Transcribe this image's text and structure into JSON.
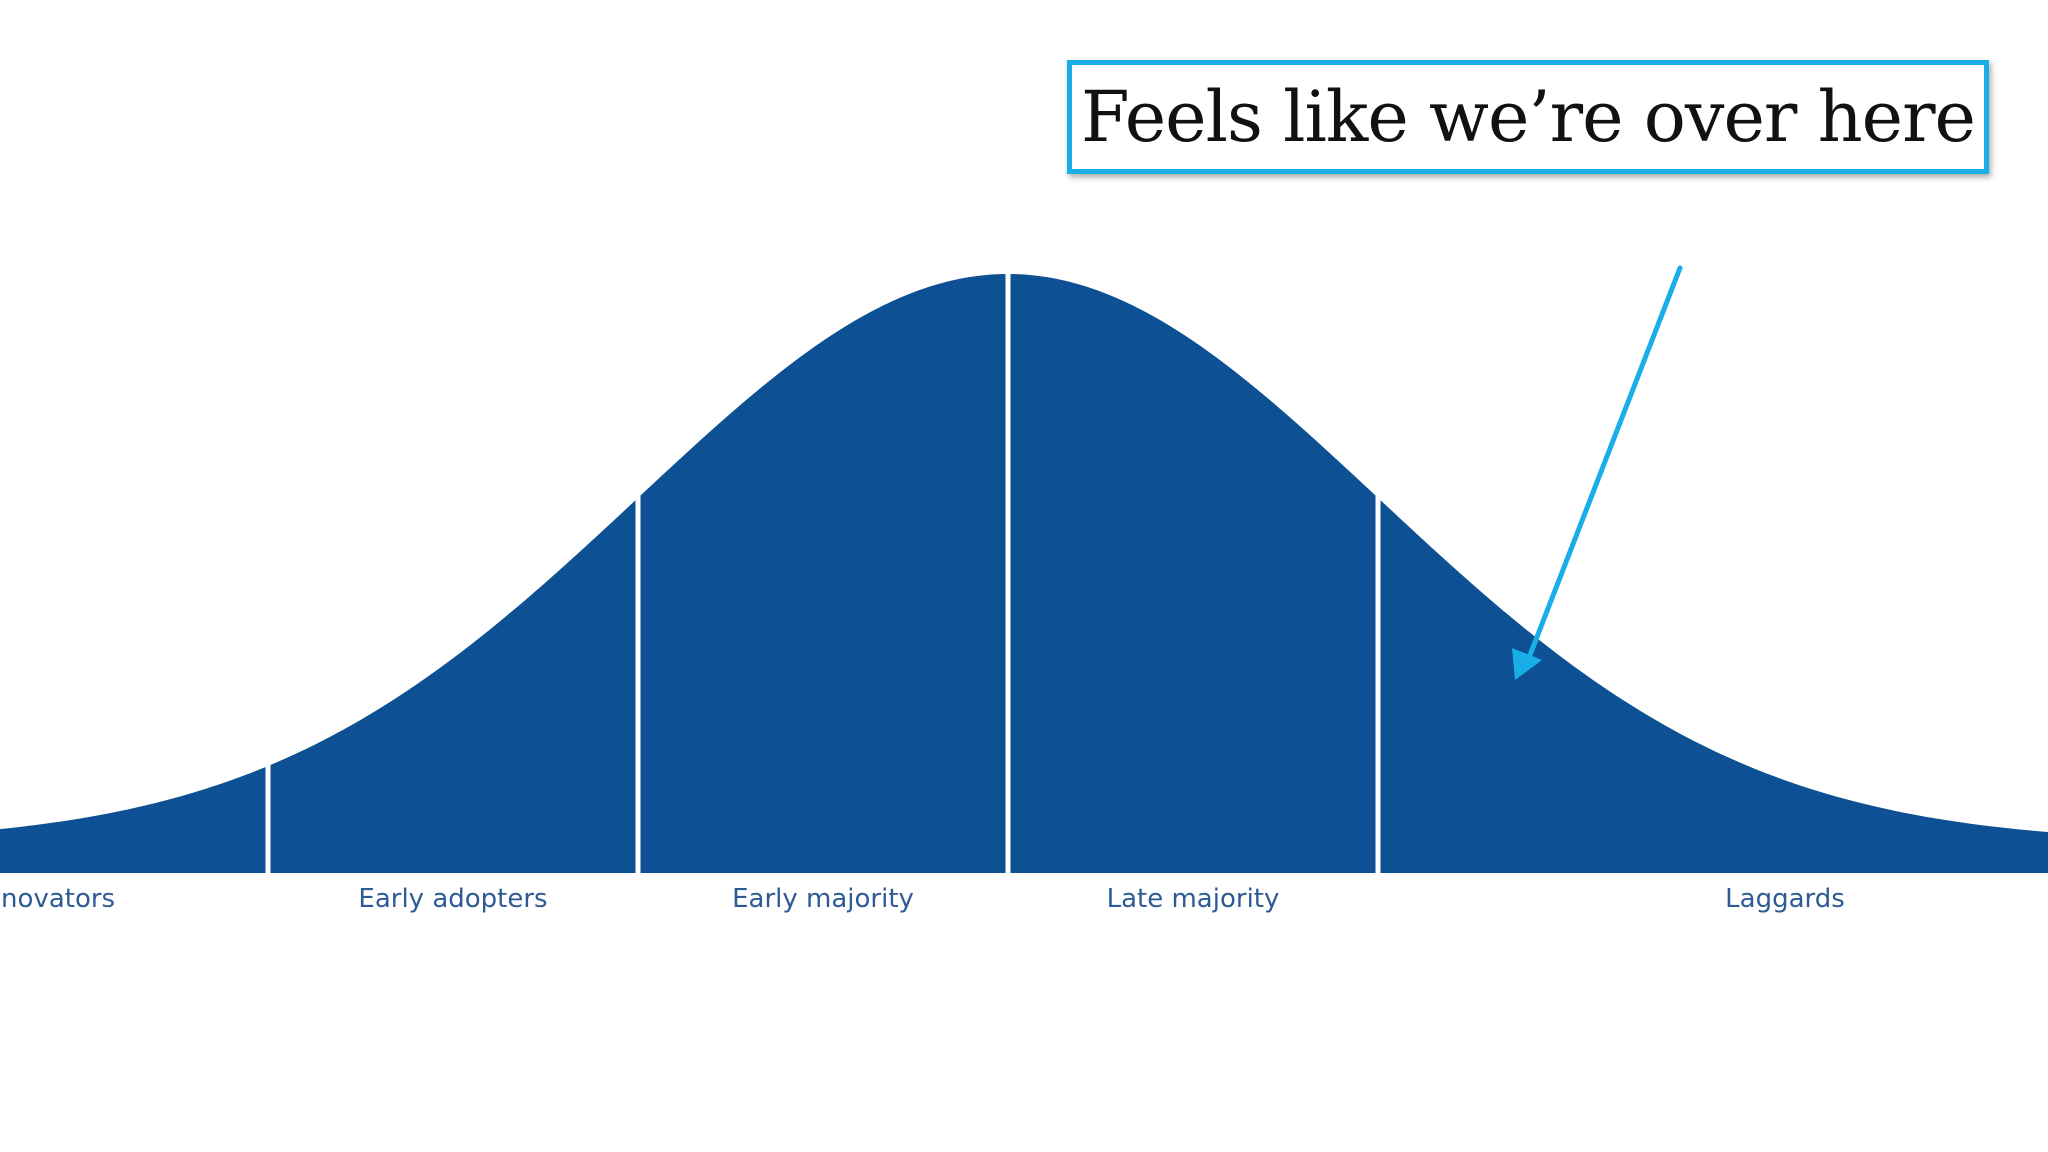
{
  "callout": {
    "text": "Feels like we’re over here",
    "border_color": "#1aaee8"
  },
  "arrow": {
    "color": "#1aaee8"
  },
  "chart_data": {
    "type": "area",
    "shape": "normal distribution (bell curve)",
    "categories": [
      "Innovators",
      "Early adopters",
      "Early majority",
      "Late majority",
      "Laggards"
    ],
    "segment_bounds_sd": [
      -3.2,
      -2,
      -1,
      0,
      1,
      3.2
    ],
    "fill_color": "#0d5093",
    "label_color": "#2e5b95",
    "grid": false,
    "legend": "none",
    "xlabel": "",
    "ylabel": "",
    "title": ""
  }
}
